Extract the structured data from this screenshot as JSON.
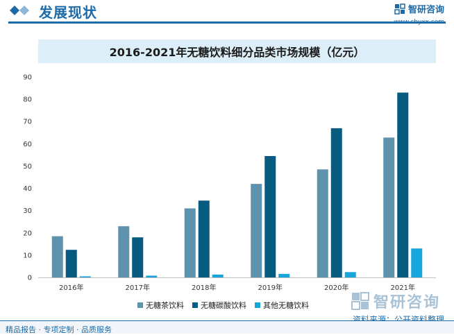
{
  "header": {
    "section_title": "发展现状",
    "brand_name": "智研咨询",
    "brand_url": "www.chyxx.com"
  },
  "chart_data": {
    "type": "bar",
    "title": "2016-2021年无糖饮料细分品类市场规模（亿元）",
    "categories": [
      "2016年",
      "2017年",
      "2018年",
      "2019年",
      "2020年",
      "2021年"
    ],
    "ylim": [
      0,
      90
    ],
    "yticks": [
      0,
      10,
      20,
      30,
      40,
      50,
      60,
      70,
      80,
      90
    ],
    "grid": false,
    "legend_position": "bottom",
    "series": [
      {
        "name": "无糖茶饮料",
        "color": "#5f93ad",
        "values": [
          18.5,
          23,
          31,
          42,
          48.5,
          62.8
        ]
      },
      {
        "name": "无糖碳酸饮料",
        "color": "#075b80",
        "values": [
          12.4,
          18,
          34.5,
          54.5,
          67,
          83
        ]
      },
      {
        "name": "其他无糖饮料",
        "color": "#17a6dc",
        "values": [
          0.5,
          0.8,
          1.3,
          1.6,
          2.4,
          13
        ]
      }
    ]
  },
  "watermark": {
    "text": "智研咨询"
  },
  "source": "资料来源：公开资料整理",
  "footer": "精品报告 · 专项定制 · 品质服务"
}
